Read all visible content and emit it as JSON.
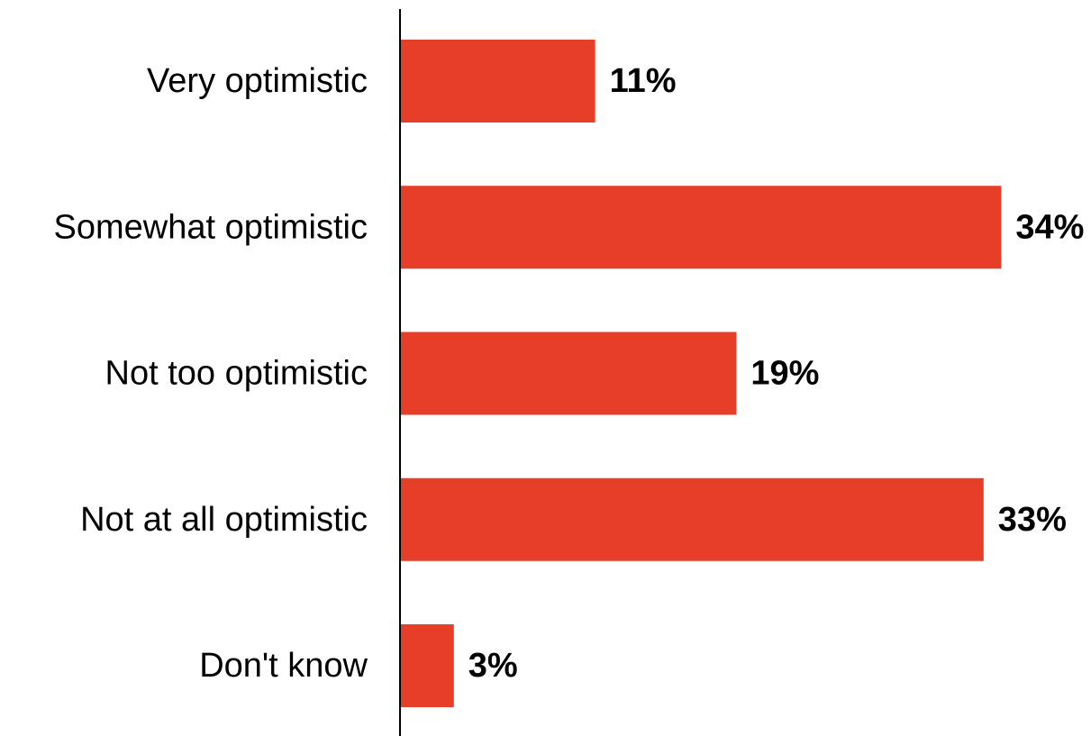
{
  "chart_data": {
    "type": "bar",
    "orientation": "horizontal",
    "categories": [
      "Very optimistic",
      "Somewhat optimistic",
      "Not too optimistic",
      "Not at all optimistic",
      "Don't know"
    ],
    "values": [
      11,
      34,
      19,
      33,
      3
    ],
    "value_labels": [
      "11%",
      "34%",
      "19%",
      "33%",
      "3%"
    ],
    "title": "",
    "xlabel": "",
    "ylabel": "",
    "xlim": [
      0,
      34
    ],
    "grid": false,
    "legend": "none",
    "colors": {
      "bar": "#E63E28",
      "axis": "#000000",
      "text": "#000000"
    }
  }
}
